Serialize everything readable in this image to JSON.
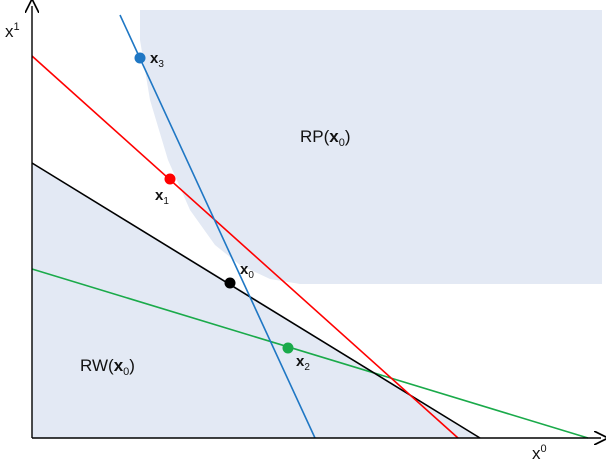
{
  "axes": {
    "x_label": "x",
    "x_sup": "0",
    "y_label": "x",
    "y_sup": "1"
  },
  "regions": {
    "rp": {
      "name": "RP(",
      "sub_bold": "x",
      "sub": "0",
      "close": ")"
    },
    "rw": {
      "name": "RW(",
      "sub_bold": "x",
      "sub": "0",
      "close": ")"
    }
  },
  "points": {
    "x0": {
      "base": "x",
      "sub": "0",
      "color": "#000000"
    },
    "x1": {
      "base": "x",
      "sub": "1",
      "color": "#ff0000"
    },
    "x2": {
      "base": "x",
      "sub": "2",
      "color": "#1aaa4a"
    },
    "x3": {
      "base": "x",
      "sub": "3",
      "color": "#1f77c4"
    }
  },
  "colors": {
    "region_fill": "#e3e9f4",
    "line_black": "#000000",
    "line_red": "#ff0000",
    "line_green": "#1aaa4a",
    "line_blue": "#1f77c4"
  }
}
